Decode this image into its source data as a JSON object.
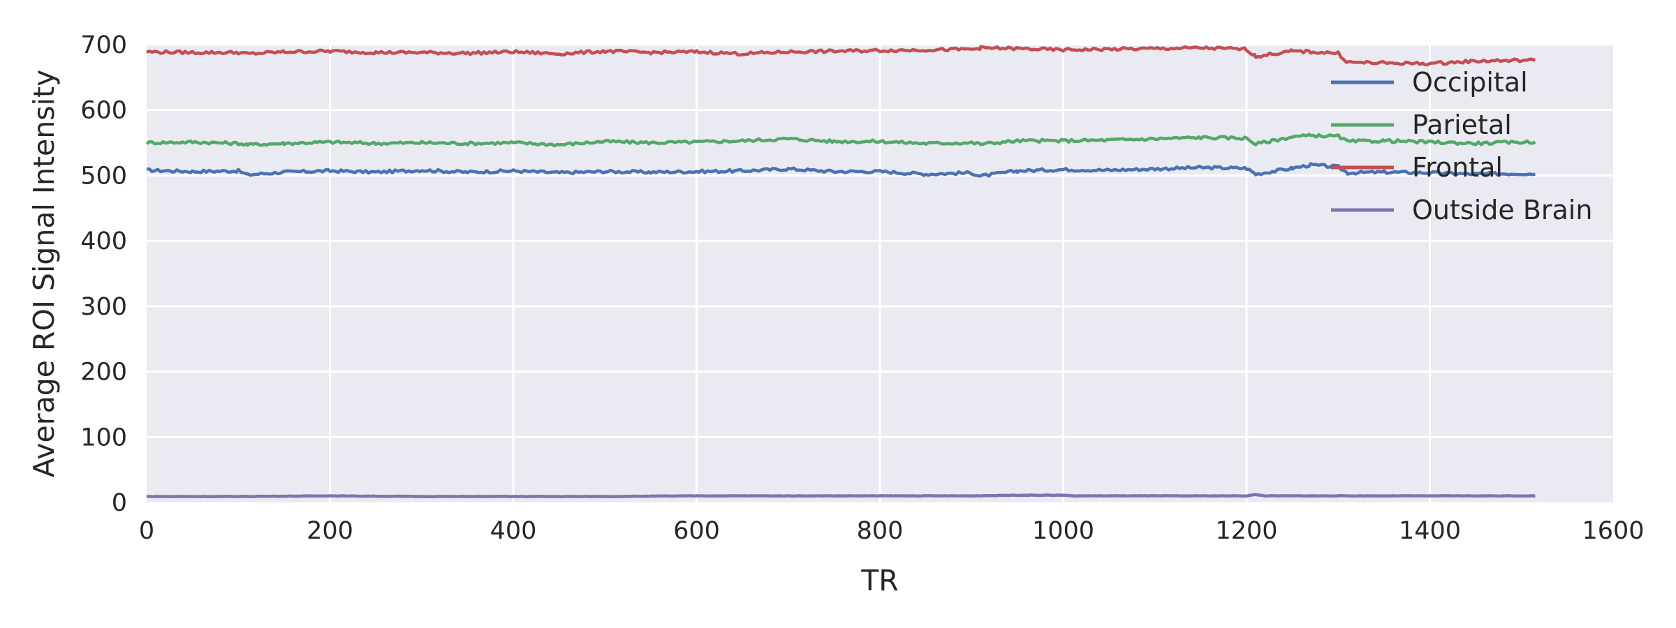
{
  "chart_data": {
    "type": "line",
    "title": "",
    "xlabel": "TR",
    "ylabel": "Average ROI Signal Intensity",
    "xlim": [
      0,
      1600
    ],
    "ylim": [
      0,
      700
    ],
    "x_ticks": [
      0,
      200,
      400,
      600,
      800,
      1000,
      1200,
      1400,
      1600
    ],
    "y_ticks": [
      0,
      100,
      200,
      300,
      400,
      500,
      600,
      700
    ],
    "x_tick_labels": [
      "0",
      "200",
      "400",
      "600",
      "800",
      "1000",
      "1200",
      "1400",
      "1600"
    ],
    "y_tick_labels": [
      "0",
      "100",
      "200",
      "300",
      "400",
      "500",
      "600",
      "700"
    ],
    "grid": true,
    "background_color": "#eaeaf2",
    "grid_color": "#ffffff",
    "legend_position": "top-right",
    "series": [
      {
        "name": "Occipital",
        "color": "#4c72b0",
        "x": [
          0,
          50,
          100,
          110,
          150,
          200,
          250,
          300,
          350,
          400,
          450,
          500,
          550,
          600,
          650,
          700,
          750,
          800,
          850,
          900,
          910,
          950,
          1000,
          1050,
          1100,
          1150,
          1200,
          1210,
          1250,
          1270,
          1300,
          1310,
          1350,
          1400,
          1450,
          1500,
          1515
        ],
        "values": [
          508,
          506,
          507,
          501,
          505,
          507,
          505,
          508,
          505,
          507,
          504,
          506,
          505,
          506,
          507,
          510,
          506,
          506,
          502,
          504,
          499,
          507,
          509,
          508,
          510,
          512,
          511,
          502,
          511,
          516,
          513,
          504,
          505,
          504,
          502,
          503,
          502
        ]
      },
      {
        "name": "Parietal",
        "color": "#55a868",
        "x": [
          0,
          50,
          100,
          110,
          150,
          200,
          250,
          300,
          350,
          400,
          450,
          500,
          550,
          600,
          650,
          700,
          750,
          800,
          850,
          900,
          910,
          950,
          1000,
          1050,
          1100,
          1150,
          1200,
          1210,
          1250,
          1270,
          1300,
          1310,
          1350,
          1400,
          1450,
          1500,
          1515
        ],
        "values": [
          550,
          551,
          549,
          547,
          549,
          551,
          549,
          550,
          549,
          550,
          547,
          552,
          550,
          551,
          553,
          556,
          552,
          552,
          549,
          550,
          548,
          553,
          553,
          554,
          556,
          558,
          557,
          548,
          559,
          561,
          560,
          552,
          553,
          551,
          549,
          551,
          551
        ]
      },
      {
        "name": "Frontal",
        "color": "#c44e52",
        "x": [
          0,
          50,
          100,
          110,
          150,
          200,
          250,
          300,
          350,
          400,
          450,
          500,
          550,
          600,
          650,
          700,
          750,
          800,
          850,
          900,
          910,
          950,
          1000,
          1050,
          1100,
          1150,
          1200,
          1210,
          1250,
          1270,
          1300,
          1310,
          1350,
          1400,
          1450,
          1500,
          1515
        ],
        "values": [
          689,
          688,
          688,
          686,
          689,
          690,
          688,
          688,
          687,
          689,
          686,
          690,
          688,
          689,
          686,
          689,
          690,
          691,
          692,
          693,
          695,
          694,
          692,
          693,
          694,
          695,
          693,
          682,
          690,
          689,
          687,
          673,
          672,
          671,
          675,
          676,
          676
        ]
      },
      {
        "name": "Outside Brain",
        "color": "#8172b2",
        "x": [
          0,
          50,
          100,
          200,
          300,
          400,
          500,
          600,
          700,
          800,
          900,
          950,
          1000,
          1010,
          1050,
          1100,
          1150,
          1200,
          1210,
          1220,
          1300,
          1400,
          1515
        ],
        "values": [
          9,
          9,
          9,
          10,
          9,
          9,
          9,
          10,
          10,
          10,
          10,
          11,
          11,
          10,
          10,
          10,
          10,
          10,
          12,
          10,
          10,
          10,
          10
        ]
      }
    ]
  }
}
